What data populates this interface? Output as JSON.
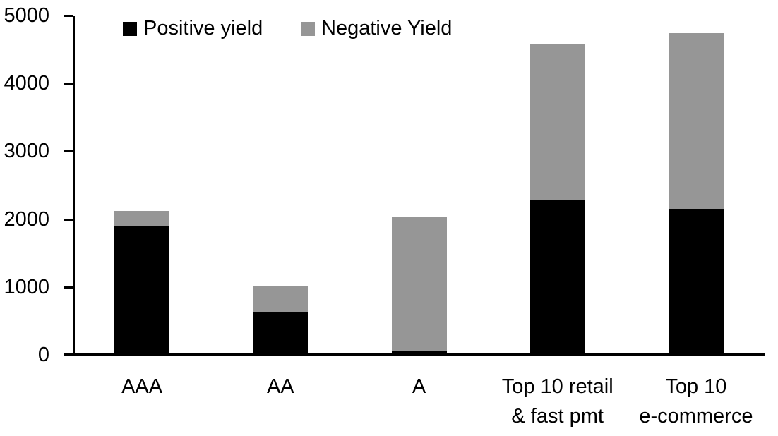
{
  "chart_data": {
    "type": "bar",
    "stacked": true,
    "title": "",
    "categories": [
      "AAA",
      "AA",
      "A",
      "Top 10 retail\n& fast pmt",
      "Top 10\ne-commerce"
    ],
    "series": [
      {
        "name": "Positive yield",
        "color": "#000000",
        "values": [
          1900,
          630,
          50,
          2290,
          2150
        ]
      },
      {
        "name": "Negative Yield",
        "color": "#969696",
        "values": [
          220,
          380,
          1980,
          2280,
          2590
        ]
      }
    ],
    "stack_totals": [
      2120,
      1010,
      2030,
      4570,
      4740
    ],
    "ylim": [
      0,
      5000
    ],
    "yticks": [
      "0",
      "1000",
      "2000",
      "3000",
      "4000",
      "5000"
    ],
    "xlabel": "",
    "ylabel": "",
    "grid": false,
    "legend_position": "top-inside",
    "axis_color": "#000000",
    "background": "#ffffff"
  }
}
